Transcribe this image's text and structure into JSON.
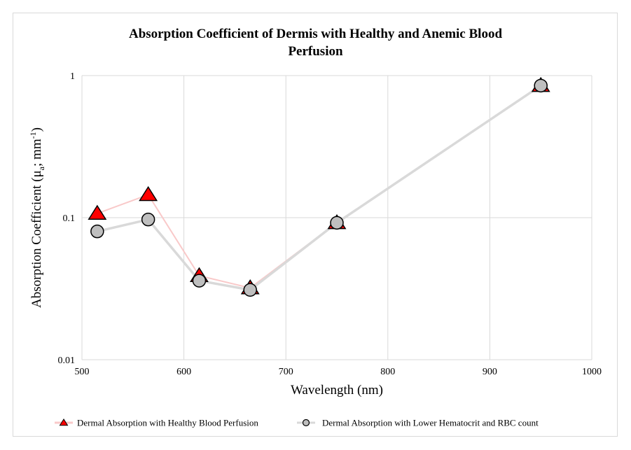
{
  "chart_data": {
    "type": "line",
    "title_lines": [
      "Absorption  Coefficient of Dermis with Healthy and Anemic Blood",
      "Perfusion"
    ],
    "xlabel": "Wavelength (nm)",
    "ylabel_main": "Absorption Coefficient (μ",
    "ylabel_sub": "a",
    "ylabel_mid": "; mm",
    "ylabel_sup": "-1",
    "ylabel_end": ")",
    "xlim": [
      500,
      1000
    ],
    "ylim": [
      0.01,
      1
    ],
    "yscale": "log",
    "xticks": [
      "500",
      "600",
      "700",
      "800",
      "900",
      "1000"
    ],
    "yticks": [
      "1",
      "0.1",
      "0.01"
    ],
    "grid": true,
    "legend_position": "bottom",
    "series": [
      {
        "name": "Dermal Absorption with Healthy Blood Perfusion",
        "marker": "triangle",
        "color": "#ff0000",
        "line_color": "#f9c9c9",
        "x": [
          515,
          565,
          615,
          665,
          750,
          950
        ],
        "y": [
          0.107,
          0.145,
          0.039,
          0.032,
          0.092,
          0.85
        ]
      },
      {
        "name": "Dermal Absorption with Lower Hematocrit and RBC count",
        "marker": "circle",
        "color": "#bfbfbf",
        "line_color": "#d9d9d9",
        "x": [
          515,
          565,
          615,
          665,
          750,
          950
        ],
        "y": [
          0.08,
          0.097,
          0.036,
          0.031,
          0.092,
          0.85
        ]
      }
    ]
  }
}
